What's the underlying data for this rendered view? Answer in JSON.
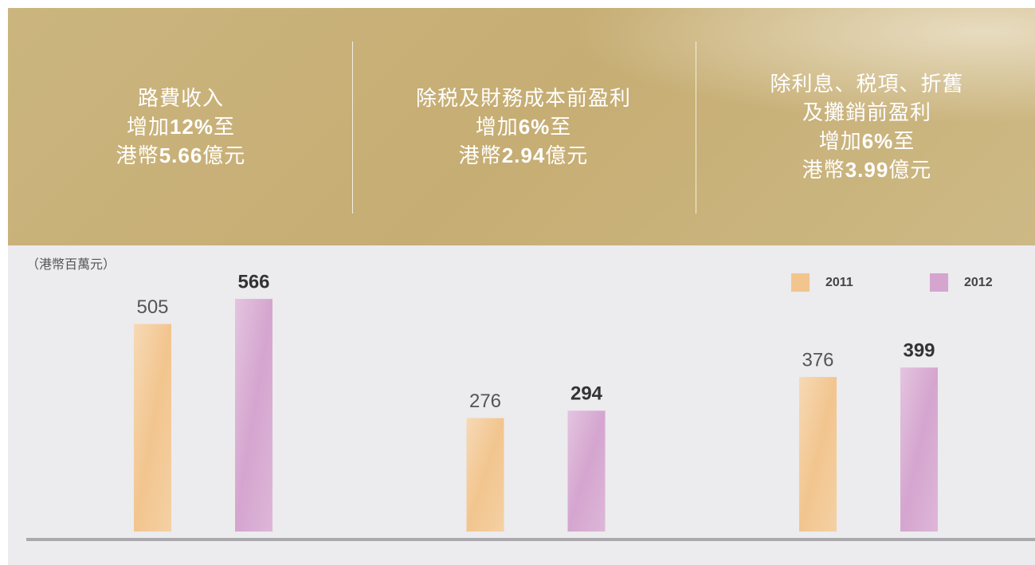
{
  "panels": [
    {
      "lines": [
        [
          "路費收入"
        ],
        [
          "增加",
          "12%",
          "至"
        ],
        [
          "港幣",
          "5.66",
          "億元"
        ]
      ]
    },
    {
      "lines": [
        [
          "除税及財務成本前盈利"
        ],
        [
          "增加",
          "6%",
          "至"
        ],
        [
          "港幣",
          "2.94",
          "億元"
        ]
      ]
    },
    {
      "lines": [
        [
          "除利息、税項、折舊"
        ],
        [
          "及攤銷前盈利"
        ],
        [
          "增加",
          "6%",
          "至"
        ],
        [
          "港幣",
          "3.99",
          "億元"
        ]
      ]
    }
  ],
  "chart_data": {
    "type": "bar",
    "unit_label": "（港幣百萬元）",
    "categories": [
      null,
      null,
      null
    ],
    "series": [
      {
        "name": "2011",
        "color": "#f2c58e",
        "values": [
          505,
          276,
          376
        ]
      },
      {
        "name": "2012",
        "color": "#d5a5cf",
        "values": [
          566,
          294,
          399
        ]
      }
    ],
    "ylim": [
      0,
      700
    ],
    "legend": "top-right"
  }
}
